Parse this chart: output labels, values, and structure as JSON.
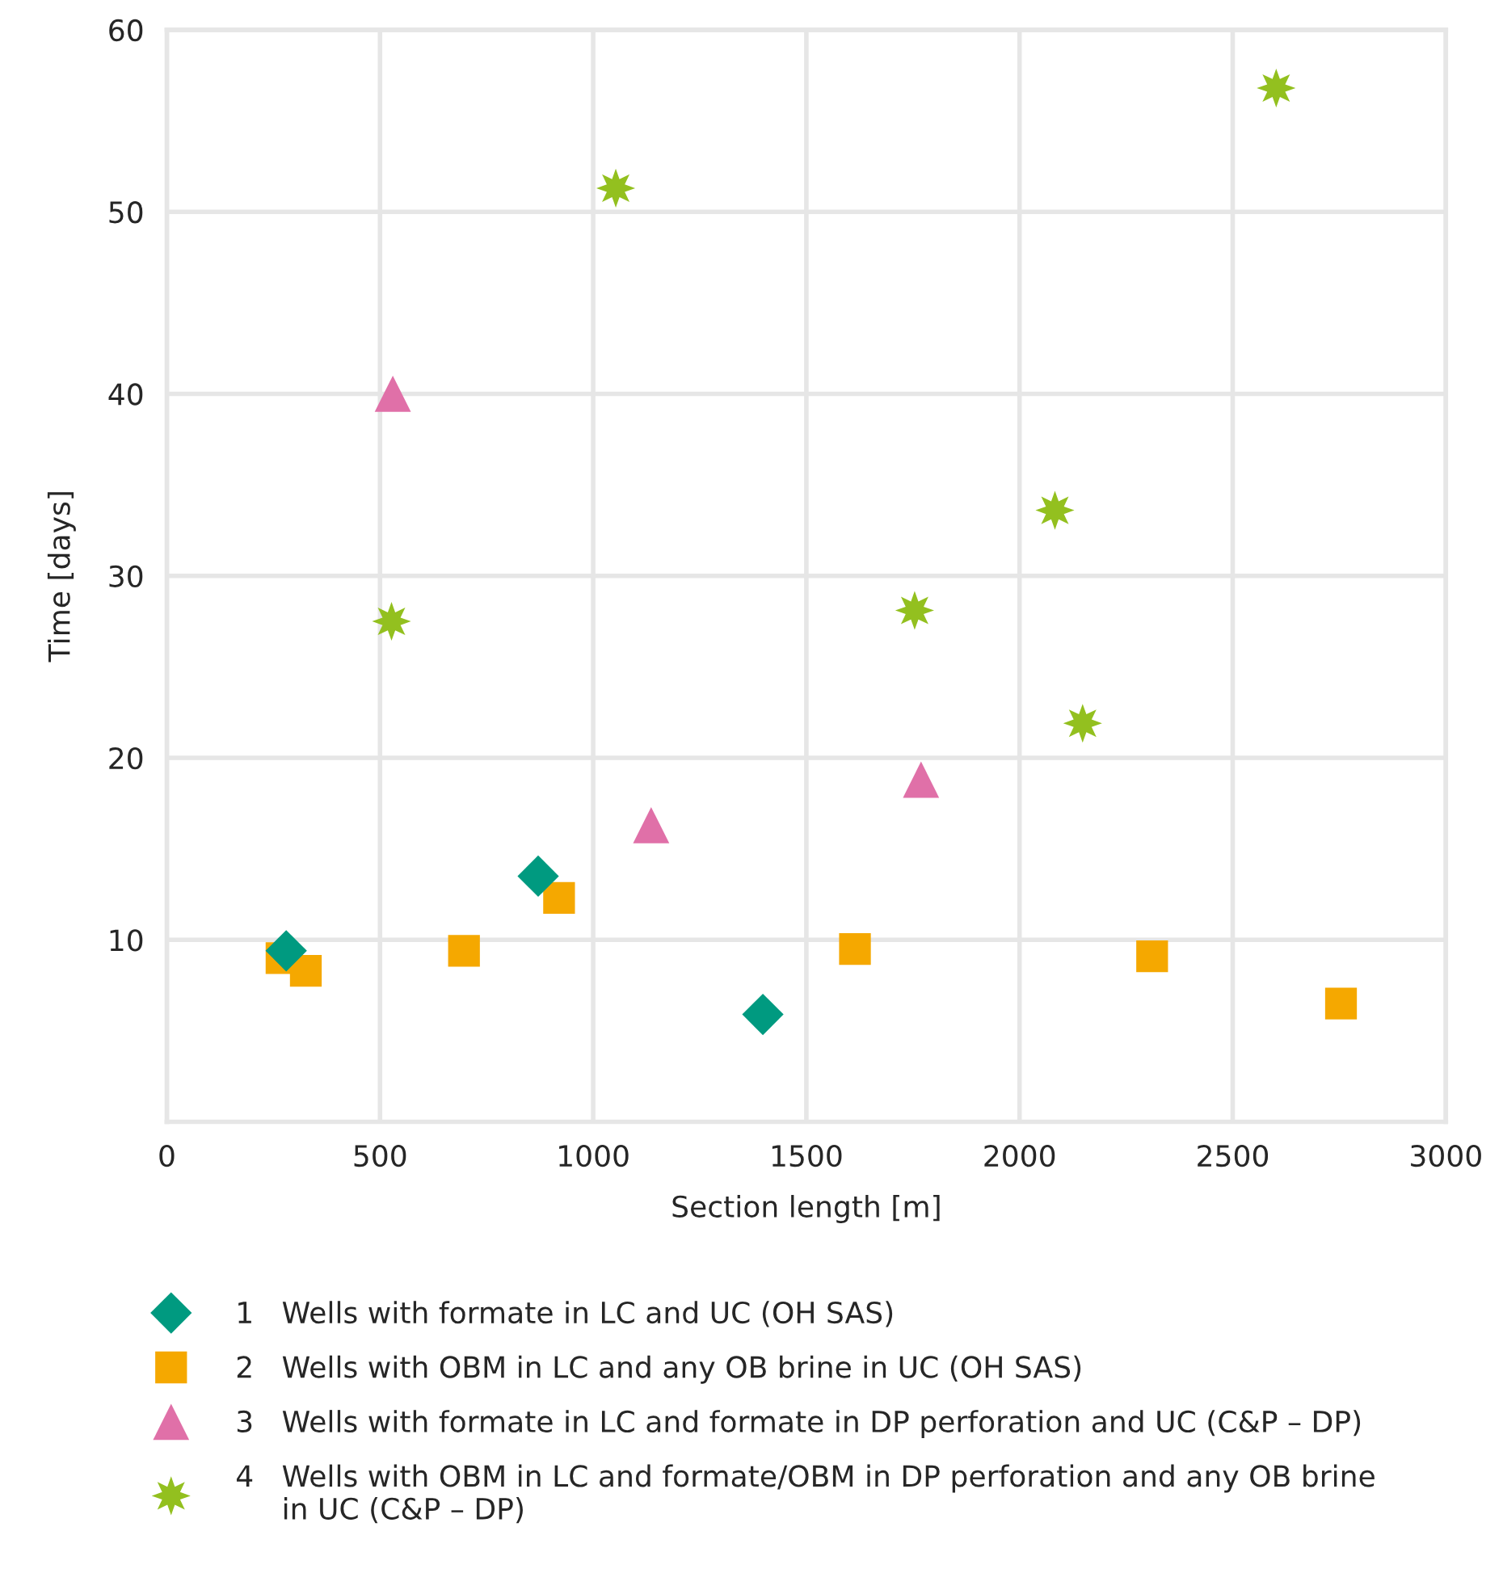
{
  "chart_data": {
    "type": "scatter",
    "xlabel": "Section length [m]",
    "ylabel": "Time [days]",
    "xlim": [
      0,
      3000
    ],
    "xticks": [
      0,
      500,
      1000,
      1500,
      2000,
      2500,
      3000
    ],
    "ylim": [
      0,
      60
    ],
    "yticks": [
      10,
      20,
      30,
      40,
      50,
      60
    ],
    "grid": true,
    "legend": "bottom",
    "series": [
      {
        "name": "1   Wells with formate in LC and UC (OH SAS)",
        "color": "#009a80",
        "marker": "diamond",
        "x": [
          280,
          871,
          1398
        ],
        "values": [
          9.4,
          13.5,
          5.9
        ]
      },
      {
        "name": "2   Wells with OBM in LC and any OB brine in UC (OH SAS)",
        "color": "#f5a800",
        "marker": "square",
        "x": [
          269,
          326,
          697,
          920,
          1614,
          2311,
          2754
        ],
        "values": [
          9.0,
          8.3,
          9.4,
          12.3,
          9.5,
          9.1,
          6.5
        ]
      },
      {
        "name": "3   Wells with formate in LC and formate in DP perforation and UC (C&P – DP)",
        "color": "#e070a8",
        "marker": "triangle",
        "x": [
          530,
          1136,
          1769
        ],
        "values": [
          40.0,
          16.3,
          18.8
        ]
      },
      {
        "name": "4   Wells with OBM in LC and formate/OBM in DP perforation and any OB brine\n     in UC (C&P – DP)",
        "color": "#93c01f",
        "marker": "star",
        "x": [
          527,
          1053,
          1754,
          2083,
          2148,
          2602
        ],
        "values": [
          27.5,
          51.3,
          28.1,
          33.6,
          21.9,
          56.8
        ]
      }
    ]
  }
}
